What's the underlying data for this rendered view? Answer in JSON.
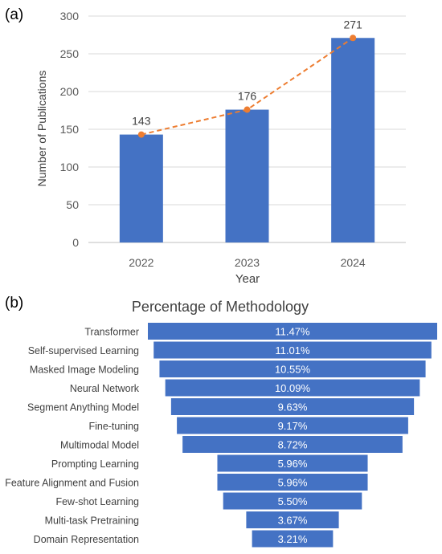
{
  "panel_a": {
    "label": "(a)",
    "chart_data": {
      "type": "bar",
      "categories": [
        "2022",
        "2023",
        "2024"
      ],
      "values": [
        143,
        176,
        271
      ],
      "data_labels": [
        "143",
        "176",
        "271"
      ],
      "overlay": "dashed line with markers through bar tops",
      "xlabel": "Year",
      "ylabel": "Number of Publications",
      "ylim": [
        0,
        300
      ],
      "yticks": [
        "0",
        "50",
        "100",
        "150",
        "200",
        "250",
        "300"
      ],
      "grid": true,
      "bar_color": "#4472C4",
      "line_color": "#ED7D31"
    }
  },
  "panel_b": {
    "label": "(b)",
    "chart_data": {
      "type": "bar",
      "orientation": "funnel",
      "title": "Percentage of Methodology",
      "categories": [
        "Transformer",
        "Self-supervised Learning",
        "Masked Image Modeling",
        "Neural Network",
        "Segment Anything Model",
        "Fine-tuning",
        "Multimodal Model",
        "Prompting Learning",
        "Feature Alignment and Fusion",
        "Few-shot Learning",
        "Multi-task Pretraining",
        "Domain Representation"
      ],
      "values": [
        11.47,
        11.01,
        10.55,
        10.09,
        9.63,
        9.17,
        8.72,
        5.96,
        5.96,
        5.5,
        3.67,
        3.21
      ],
      "value_labels": [
        "11.47%",
        "11.01%",
        "10.55%",
        "10.09%",
        "9.63%",
        "9.17%",
        "8.72%",
        "5.96%",
        "5.96%",
        "5.50%",
        "3.67%",
        "3.21%"
      ],
      "bar_color": "#4472C4"
    }
  }
}
